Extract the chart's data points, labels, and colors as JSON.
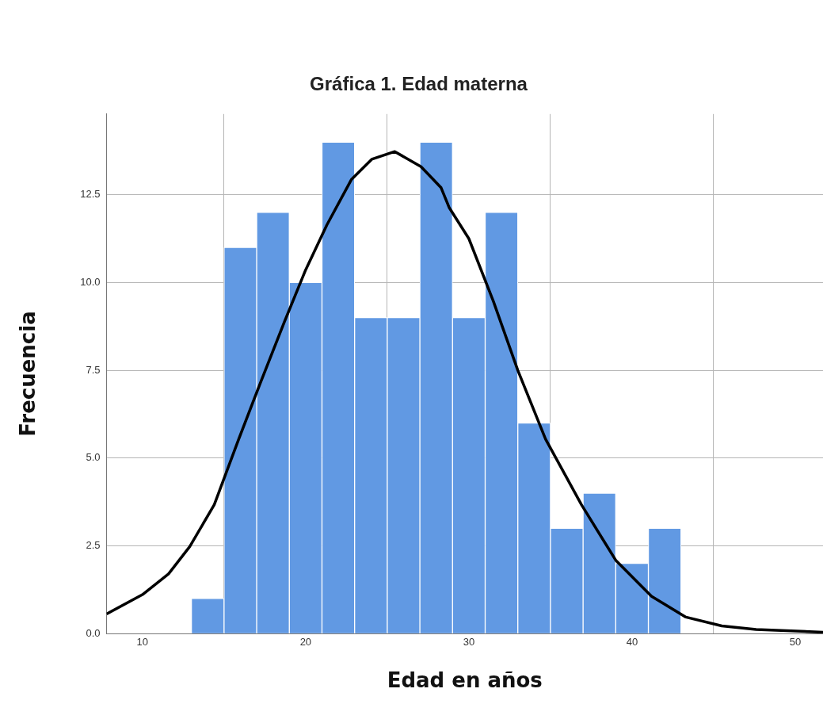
{
  "chart_data": {
    "type": "histogram",
    "title": "Gráfica 1. Edad materna",
    "xlabel": "Edad en años",
    "ylabel": "Frecuencia",
    "bins": [
      13,
      15,
      17,
      19,
      21,
      23,
      25,
      27,
      29,
      31,
      33,
      35,
      37,
      39,
      41,
      43
    ],
    "values": [
      1,
      11,
      12,
      10,
      14,
      9,
      9,
      14,
      9,
      12,
      6,
      3,
      4,
      2,
      3
    ],
    "color": "#6199e3",
    "series": [
      {
        "type": "line",
        "color": "#000000",
        "x": [
          7.8,
          10,
          11.6,
          12.9,
          14.4,
          15.9,
          17.2,
          18.7,
          20,
          21.3,
          22.8,
          24.05,
          25.46,
          27.07,
          28.3,
          28.8,
          30,
          31.5,
          33,
          34.7,
          36.9,
          39,
          41.2,
          43.3,
          45.5,
          47.6,
          51.7
        ],
        "values": [
          0.56,
          1.11,
          1.7,
          2.48,
          3.67,
          5.54,
          7.11,
          8.88,
          10.36,
          11.64,
          12.93,
          13.51,
          13.73,
          13.3,
          12.7,
          12.13,
          11.25,
          9.47,
          7.5,
          5.54,
          3.67,
          2.09,
          1.06,
          0.47,
          0.22,
          0.12,
          0.04
        ]
      }
    ],
    "xlim": [
      7.8,
      51.7
    ],
    "xticks": [
      10,
      20,
      30,
      40,
      50
    ],
    "ylim": [
      0,
      14.8
    ],
    "yticks": [
      {
        "value": 0,
        "label": "0.0"
      },
      {
        "value": 2.5,
        "label": "2.5"
      },
      {
        "value": 5,
        "label": "5.0"
      },
      {
        "value": 7.5,
        "label": "7.5"
      },
      {
        "value": 10,
        "label": "10.0"
      },
      {
        "value": 12.5,
        "label": "12.5"
      }
    ],
    "grid": true
  }
}
